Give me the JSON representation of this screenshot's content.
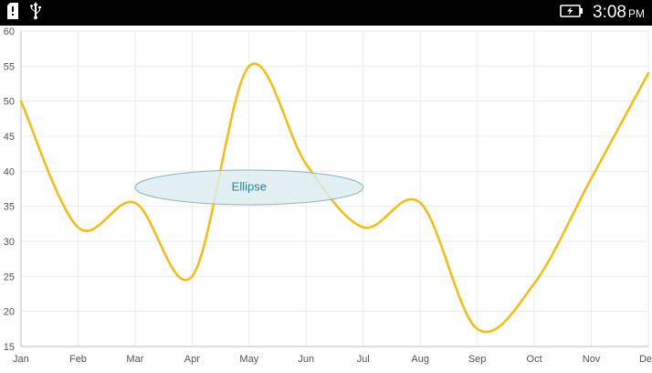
{
  "status_bar": {
    "left_icons": [
      "sd-card-icon",
      "usb-icon"
    ],
    "battery_icon": "battery-charging-icon",
    "time": "3:08",
    "ampm": "PM"
  },
  "annotation": {
    "shape": "ellipse",
    "label": "Ellipse",
    "x_start": 2.0,
    "x_end": 6.0,
    "y_center": 37.7,
    "fill_color": "#DDECF1",
    "stroke_color": "#8FB3C0",
    "text_color": "#2A7FA8"
  },
  "chart_data": {
    "type": "line",
    "smooth": true,
    "categories": [
      "Jan",
      "Feb",
      "Mar",
      "Apr",
      "May",
      "Jun",
      "Jul",
      "Aug",
      "Sep",
      "Oct",
      "Nov",
      "Dec"
    ],
    "series": [
      {
        "values": [
          50,
          32,
          35.5,
          25,
          55,
          41,
          32,
          35.5,
          17.5,
          24,
          39,
          54
        ],
        "color": "#F2BE1D"
      }
    ],
    "ylim": [
      15,
      60
    ],
    "yticks": [
      15,
      20,
      25,
      30,
      35,
      40,
      45,
      50,
      55,
      60
    ],
    "ytick_labels": [
      "15",
      "20",
      "25",
      "30",
      "35",
      "40",
      "45",
      "50",
      "55",
      "60"
    ],
    "xtick_labels": [
      "Jan",
      "Feb",
      "Mar",
      "Apr",
      "May",
      "Jun",
      "Jul",
      "Aug",
      "Sep",
      "Oct",
      "Nov",
      "De"
    ],
    "grid": true,
    "title": "",
    "xlabel": "",
    "ylabel": ""
  }
}
